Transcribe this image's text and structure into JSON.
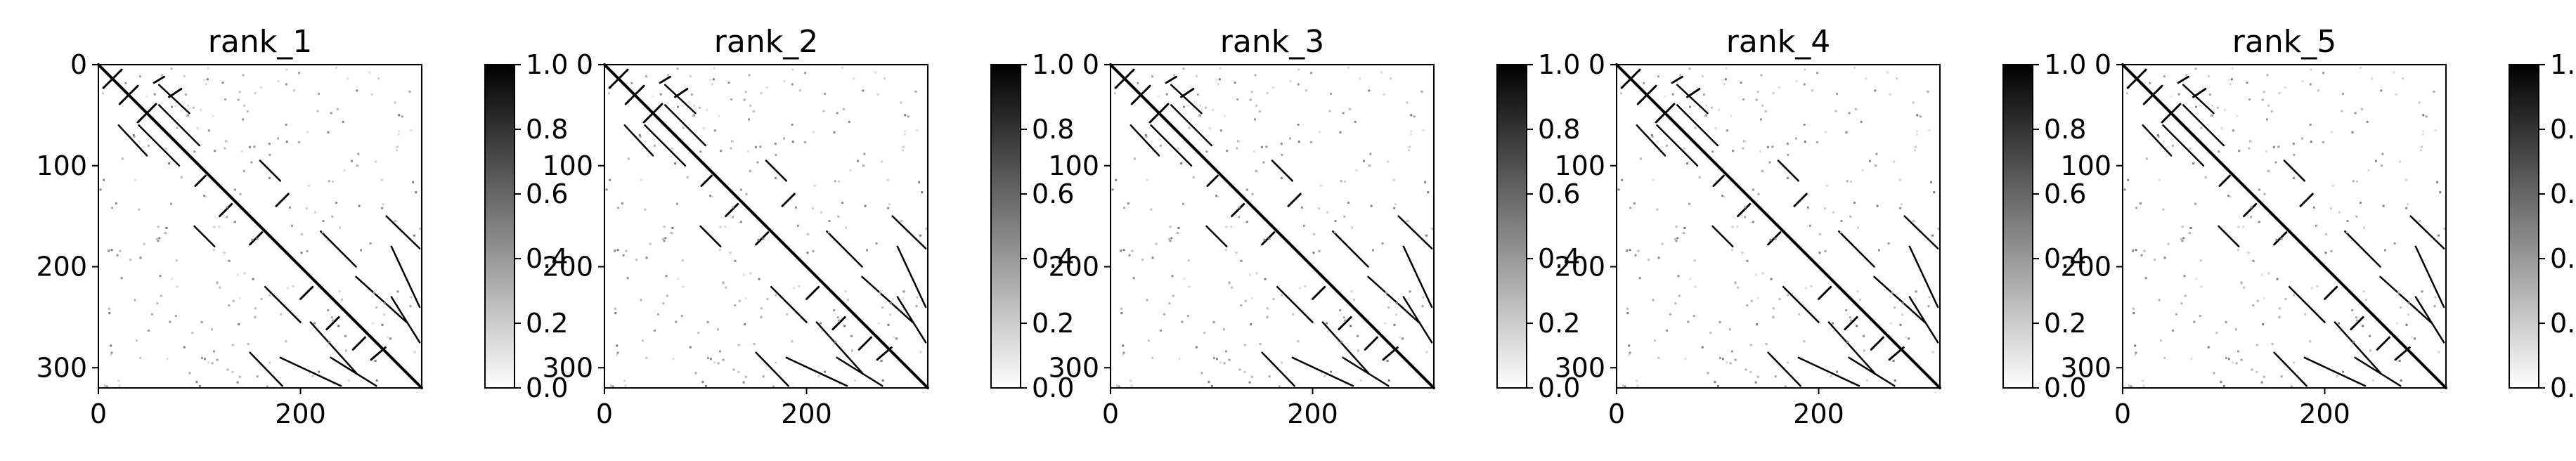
{
  "chart_data": [
    {
      "type": "heatmap",
      "title": "rank_1",
      "x_ticks": [
        "0",
        "200"
      ],
      "y_ticks": [
        "0",
        "100",
        "200",
        "300"
      ],
      "xlim": [
        0,
        320
      ],
      "ylim": [
        320,
        0
      ],
      "colorbar": {
        "ticks": [
          "0.0",
          "0.2",
          "0.4",
          "0.6",
          "0.8",
          "1.0"
        ],
        "range": [
          0.0,
          1.0
        ],
        "colormap": "Greys"
      }
    },
    {
      "type": "heatmap",
      "title": "rank_2",
      "x_ticks": [
        "0",
        "200"
      ],
      "y_ticks": [
        "0",
        "100",
        "200",
        "300"
      ],
      "xlim": [
        0,
        320
      ],
      "ylim": [
        320,
        0
      ],
      "colorbar": {
        "ticks": [
          "0.0",
          "0.2",
          "0.4",
          "0.6",
          "0.8",
          "1.0"
        ],
        "range": [
          0.0,
          1.0
        ],
        "colormap": "Greys"
      }
    },
    {
      "type": "heatmap",
      "title": "rank_3",
      "x_ticks": [
        "0",
        "200"
      ],
      "y_ticks": [
        "0",
        "100",
        "200",
        "300"
      ],
      "xlim": [
        0,
        320
      ],
      "ylim": [
        320,
        0
      ],
      "colorbar": {
        "ticks": [
          "0.0",
          "0.2",
          "0.4",
          "0.6",
          "0.8",
          "1.0"
        ],
        "range": [
          0.0,
          1.0
        ],
        "colormap": "Greys"
      }
    },
    {
      "type": "heatmap",
      "title": "rank_4",
      "x_ticks": [
        "0",
        "200"
      ],
      "y_ticks": [
        "0",
        "100",
        "200",
        "300"
      ],
      "xlim": [
        0,
        320
      ],
      "ylim": [
        320,
        0
      ],
      "colorbar": {
        "ticks": [
          "0.0",
          "0.2",
          "0.4",
          "0.6",
          "0.8",
          "1.0"
        ],
        "range": [
          0.0,
          1.0
        ],
        "colormap": "Greys"
      }
    },
    {
      "type": "heatmap",
      "title": "rank_5",
      "x_ticks": [
        "0",
        "200"
      ],
      "y_ticks": [
        "0",
        "100",
        "200",
        "300"
      ],
      "xlim": [
        0,
        320
      ],
      "ylim": [
        320,
        0
      ],
      "colorbar": {
        "ticks": [
          "0.0",
          "0.2",
          "0.4",
          "0.6",
          "0.8",
          "1.0"
        ],
        "range": [
          0.0,
          1.0
        ],
        "colormap": "Greys"
      }
    }
  ],
  "colors": {
    "high": "#000000",
    "low": "#ffffff"
  }
}
